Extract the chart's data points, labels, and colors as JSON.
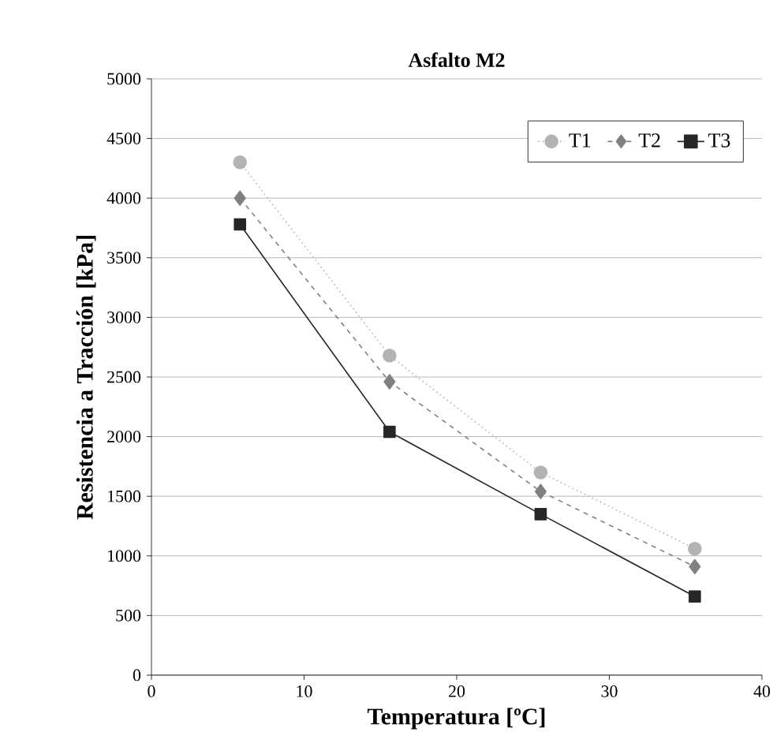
{
  "chart_data": {
    "type": "line",
    "title": "Asfalto M2",
    "xlabel": "Temperatura [ºC]",
    "ylabel": "Resistencia a Tracción [kPa]",
    "x": [
      5.8,
      15.6,
      25.5,
      35.6
    ],
    "series": [
      {
        "name": "T1",
        "color": "#b3b3b3",
        "values": [
          4300,
          2680,
          1700,
          1060
        ],
        "marker": "circle",
        "line_style": "dotted"
      },
      {
        "name": "T2",
        "color": "#808080",
        "values": [
          4000,
          2460,
          1540,
          910
        ],
        "marker": "diamond",
        "line_style": "dashed"
      },
      {
        "name": "T3",
        "color": "#262626",
        "values": [
          3780,
          2040,
          1350,
          660
        ],
        "marker": "square",
        "line_style": "solid"
      }
    ],
    "xlim": [
      0,
      40
    ],
    "xticks": [
      0,
      10,
      20,
      30,
      40
    ],
    "ylim": [
      0,
      5000
    ],
    "yticks": [
      0,
      500,
      1000,
      1500,
      2000,
      2500,
      3000,
      3500,
      4000,
      4500,
      5000
    ],
    "grid": "y",
    "legend": "top right"
  }
}
